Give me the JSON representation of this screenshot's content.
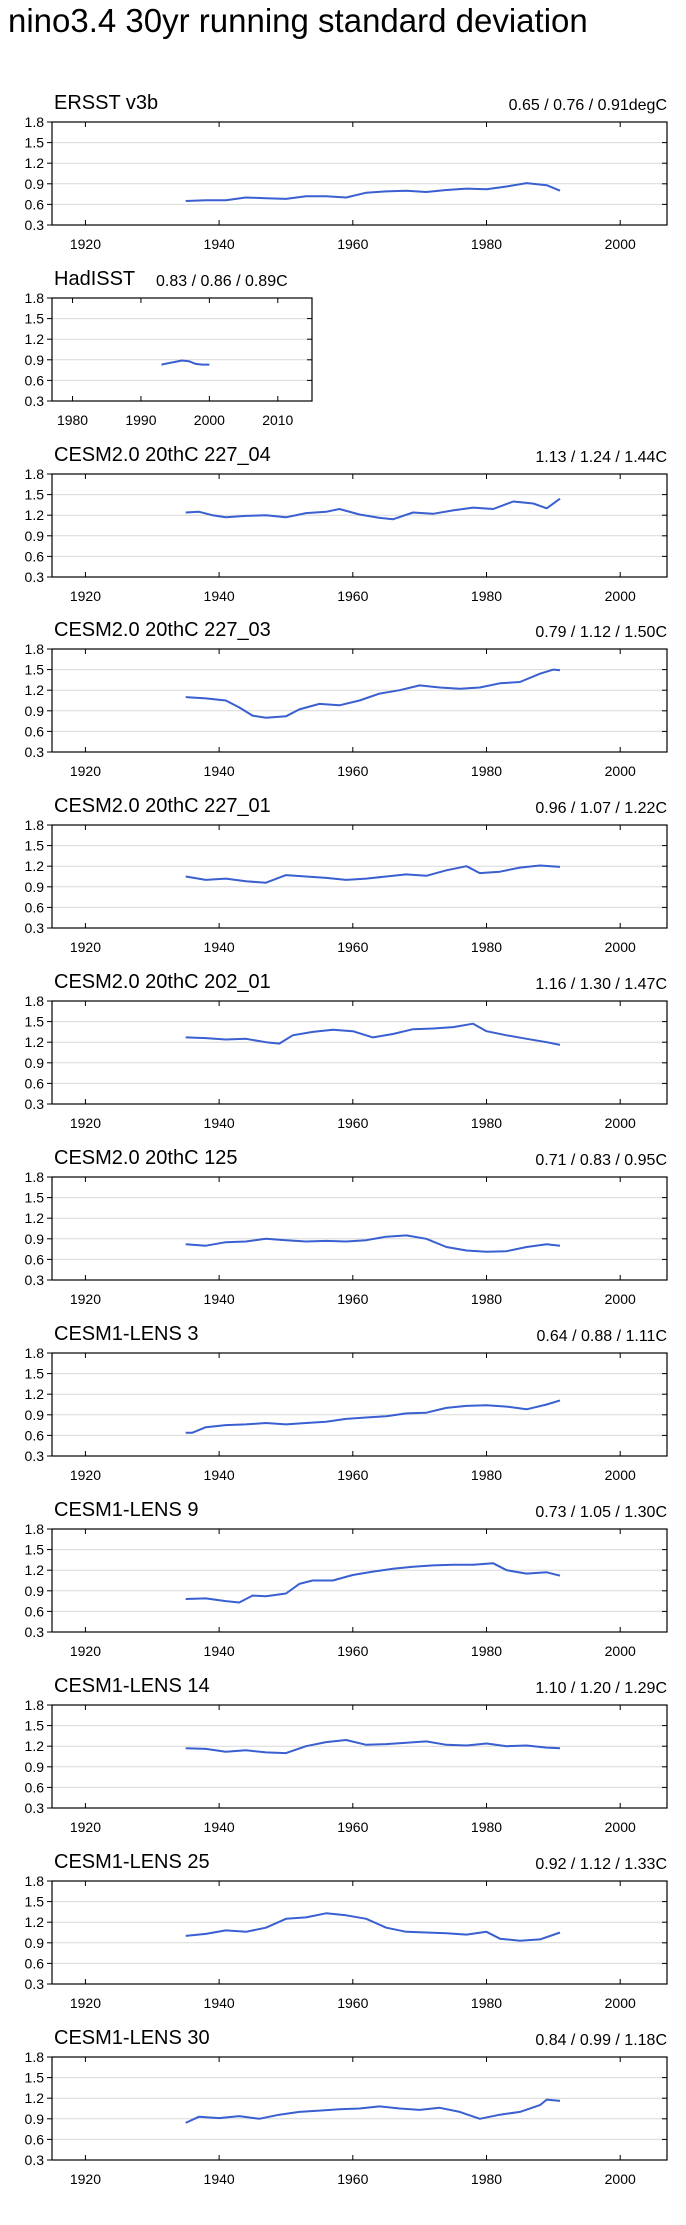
{
  "page_title": "nino3.4 30yr running standard deviation",
  "colors": {
    "line": "#3a5fd0",
    "axis": "#000000",
    "grid": "#d9d9d9"
  },
  "chart_data": [
    {
      "type": "line",
      "title": "ERSST v3b",
      "stats": "0.65 / 0.76 / 0.91degC",
      "xlim": [
        1915,
        2007
      ],
      "ylim": [
        0.3,
        1.8
      ],
      "xticks": [
        1920,
        1940,
        1960,
        1980,
        2000
      ],
      "yticks": [
        0.3,
        0.6,
        0.9,
        1.2,
        1.5,
        1.8
      ],
      "series": [
        {
          "name": "ERSST v3b",
          "x": [
            1935,
            1938,
            1941,
            1944,
            1947,
            1950,
            1953,
            1956,
            1959,
            1962,
            1965,
            1968,
            1971,
            1974,
            1977,
            1980,
            1983,
            1986,
            1989,
            1991
          ],
          "y": [
            0.65,
            0.66,
            0.66,
            0.7,
            0.69,
            0.68,
            0.72,
            0.72,
            0.7,
            0.77,
            0.79,
            0.8,
            0.78,
            0.81,
            0.83,
            0.82,
            0.86,
            0.91,
            0.88,
            0.8
          ]
        }
      ]
    },
    {
      "type": "line",
      "title": "HadISST",
      "stats": "0.83 / 0.86 / 0.89C",
      "xlim": [
        1977,
        2015
      ],
      "ylim": [
        0.3,
        1.8
      ],
      "xticks": [
        1980,
        1990,
        2000,
        2010
      ],
      "yticks": [
        0.3,
        0.6,
        0.9,
        1.2,
        1.5,
        1.8
      ],
      "series": [
        {
          "name": "HadISST",
          "x": [
            1993,
            1994,
            1995,
            1996,
            1997,
            1998,
            1999,
            2000
          ],
          "y": [
            0.83,
            0.85,
            0.87,
            0.89,
            0.88,
            0.84,
            0.83,
            0.83
          ]
        }
      ]
    },
    {
      "type": "line",
      "title": "CESM2.0 20thC 227_04",
      "stats": "1.13 / 1.24 / 1.44C",
      "xlim": [
        1915,
        2007
      ],
      "ylim": [
        0.3,
        1.8
      ],
      "xticks": [
        1920,
        1940,
        1960,
        1980,
        2000
      ],
      "yticks": [
        0.3,
        0.6,
        0.9,
        1.2,
        1.5,
        1.8
      ],
      "series": [
        {
          "name": "CESM2.0 20thC 227_04",
          "x": [
            1935,
            1937,
            1939,
            1941,
            1944,
            1947,
            1950,
            1953,
            1956,
            1958,
            1961,
            1964,
            1966,
            1969,
            1972,
            1975,
            1978,
            1981,
            1984,
            1987,
            1989,
            1991
          ],
          "y": [
            1.24,
            1.25,
            1.2,
            1.17,
            1.19,
            1.2,
            1.17,
            1.23,
            1.25,
            1.29,
            1.21,
            1.16,
            1.14,
            1.24,
            1.22,
            1.27,
            1.31,
            1.29,
            1.4,
            1.37,
            1.3,
            1.44
          ]
        }
      ]
    },
    {
      "type": "line",
      "title": "CESM2.0 20thC 227_03",
      "stats": "0.79 / 1.12 / 1.50C",
      "xlim": [
        1915,
        2007
      ],
      "ylim": [
        0.3,
        1.8
      ],
      "xticks": [
        1920,
        1940,
        1960,
        1980,
        2000
      ],
      "yticks": [
        0.3,
        0.6,
        0.9,
        1.2,
        1.5,
        1.8
      ],
      "series": [
        {
          "name": "CESM2.0 20thC 227_03",
          "x": [
            1935,
            1938,
            1941,
            1943,
            1945,
            1947,
            1950,
            1952,
            1955,
            1958,
            1961,
            1964,
            1967,
            1970,
            1973,
            1976,
            1979,
            1982,
            1985,
            1988,
            1990,
            1991
          ],
          "y": [
            1.1,
            1.08,
            1.05,
            0.95,
            0.83,
            0.8,
            0.82,
            0.92,
            1.0,
            0.98,
            1.05,
            1.15,
            1.2,
            1.27,
            1.24,
            1.22,
            1.24,
            1.3,
            1.32,
            1.44,
            1.5,
            1.49
          ]
        }
      ]
    },
    {
      "type": "line",
      "title": "CESM2.0 20thC 227_01",
      "stats": "0.96 / 1.07 / 1.22C",
      "xlim": [
        1915,
        2007
      ],
      "ylim": [
        0.3,
        1.8
      ],
      "xticks": [
        1920,
        1940,
        1960,
        1980,
        2000
      ],
      "yticks": [
        0.3,
        0.6,
        0.9,
        1.2,
        1.5,
        1.8
      ],
      "series": [
        {
          "name": "CESM2.0 20thC 227_01",
          "x": [
            1935,
            1938,
            1941,
            1944,
            1947,
            1950,
            1953,
            1956,
            1959,
            1962,
            1965,
            1968,
            1971,
            1974,
            1977,
            1979,
            1982,
            1985,
            1988,
            1991
          ],
          "y": [
            1.05,
            1.0,
            1.02,
            0.98,
            0.96,
            1.07,
            1.05,
            1.03,
            1.0,
            1.02,
            1.05,
            1.08,
            1.06,
            1.14,
            1.2,
            1.1,
            1.12,
            1.18,
            1.21,
            1.19
          ]
        }
      ]
    },
    {
      "type": "line",
      "title": "CESM2.0 20thC 202_01",
      "stats": "1.16 / 1.30 / 1.47C",
      "xlim": [
        1915,
        2007
      ],
      "ylim": [
        0.3,
        1.8
      ],
      "xticks": [
        1920,
        1940,
        1960,
        1980,
        2000
      ],
      "yticks": [
        0.3,
        0.6,
        0.9,
        1.2,
        1.5,
        1.8
      ],
      "series": [
        {
          "name": "CESM2.0 20thC 202_01",
          "x": [
            1935,
            1938,
            1941,
            1944,
            1947,
            1949,
            1951,
            1954,
            1957,
            1960,
            1963,
            1966,
            1969,
            1972,
            1975,
            1978,
            1980,
            1983,
            1986,
            1989,
            1991
          ],
          "y": [
            1.27,
            1.26,
            1.24,
            1.25,
            1.2,
            1.18,
            1.3,
            1.35,
            1.38,
            1.36,
            1.27,
            1.32,
            1.39,
            1.4,
            1.42,
            1.47,
            1.36,
            1.3,
            1.25,
            1.2,
            1.16
          ]
        }
      ]
    },
    {
      "type": "line",
      "title": "CESM2.0 20thC 125",
      "stats": "0.71 / 0.83 / 0.95C",
      "xlim": [
        1915,
        2007
      ],
      "ylim": [
        0.3,
        1.8
      ],
      "xticks": [
        1920,
        1940,
        1960,
        1980,
        2000
      ],
      "yticks": [
        0.3,
        0.6,
        0.9,
        1.2,
        1.5,
        1.8
      ],
      "series": [
        {
          "name": "CESM2.0 20thC 125",
          "x": [
            1935,
            1938,
            1941,
            1944,
            1947,
            1950,
            1953,
            1956,
            1959,
            1962,
            1965,
            1968,
            1971,
            1974,
            1977,
            1980,
            1983,
            1986,
            1989,
            1991
          ],
          "y": [
            0.82,
            0.8,
            0.85,
            0.86,
            0.9,
            0.88,
            0.86,
            0.87,
            0.86,
            0.88,
            0.93,
            0.95,
            0.9,
            0.78,
            0.73,
            0.71,
            0.72,
            0.78,
            0.82,
            0.8
          ]
        }
      ]
    },
    {
      "type": "line",
      "title": "CESM1-LENS 3",
      "stats": "0.64 / 0.88 / 1.11C",
      "xlim": [
        1915,
        2007
      ],
      "ylim": [
        0.3,
        1.8
      ],
      "xticks": [
        1920,
        1940,
        1960,
        1980,
        2000
      ],
      "yticks": [
        0.3,
        0.6,
        0.9,
        1.2,
        1.5,
        1.8
      ],
      "series": [
        {
          "name": "CESM1-LENS 3",
          "x": [
            1935,
            1936,
            1938,
            1941,
            1944,
            1947,
            1950,
            1953,
            1956,
            1959,
            1962,
            1965,
            1968,
            1971,
            1974,
            1977,
            1980,
            1983,
            1986,
            1989,
            1991
          ],
          "y": [
            0.64,
            0.64,
            0.72,
            0.75,
            0.76,
            0.78,
            0.76,
            0.78,
            0.8,
            0.84,
            0.86,
            0.88,
            0.92,
            0.93,
            1.0,
            1.03,
            1.04,
            1.02,
            0.98,
            1.05,
            1.11
          ]
        }
      ]
    },
    {
      "type": "line",
      "title": "CESM1-LENS 9",
      "stats": "0.73 / 1.05 / 1.30C",
      "xlim": [
        1915,
        2007
      ],
      "ylim": [
        0.3,
        1.8
      ],
      "xticks": [
        1920,
        1940,
        1960,
        1980,
        2000
      ],
      "yticks": [
        0.3,
        0.6,
        0.9,
        1.2,
        1.5,
        1.8
      ],
      "series": [
        {
          "name": "CESM1-LENS 9",
          "x": [
            1935,
            1938,
            1941,
            1943,
            1945,
            1947,
            1950,
            1952,
            1954,
            1957,
            1960,
            1963,
            1966,
            1969,
            1972,
            1975,
            1978,
            1981,
            1983,
            1986,
            1989,
            1991
          ],
          "y": [
            0.78,
            0.79,
            0.75,
            0.73,
            0.83,
            0.82,
            0.86,
            1.0,
            1.05,
            1.05,
            1.13,
            1.18,
            1.22,
            1.25,
            1.27,
            1.28,
            1.28,
            1.3,
            1.2,
            1.15,
            1.17,
            1.12
          ]
        }
      ]
    },
    {
      "type": "line",
      "title": "CESM1-LENS 14",
      "stats": "1.10 / 1.20 / 1.29C",
      "xlim": [
        1915,
        2007
      ],
      "ylim": [
        0.3,
        1.8
      ],
      "xticks": [
        1920,
        1940,
        1960,
        1980,
        2000
      ],
      "yticks": [
        0.3,
        0.6,
        0.9,
        1.2,
        1.5,
        1.8
      ],
      "series": [
        {
          "name": "CESM1-LENS 14",
          "x": [
            1935,
            1938,
            1941,
            1944,
            1947,
            1950,
            1953,
            1956,
            1959,
            1962,
            1965,
            1968,
            1971,
            1974,
            1977,
            1980,
            1983,
            1986,
            1989,
            1991
          ],
          "y": [
            1.17,
            1.16,
            1.12,
            1.14,
            1.11,
            1.1,
            1.2,
            1.26,
            1.29,
            1.22,
            1.23,
            1.25,
            1.27,
            1.22,
            1.21,
            1.24,
            1.2,
            1.21,
            1.18,
            1.17
          ]
        }
      ]
    },
    {
      "type": "line",
      "title": "CESM1-LENS 25",
      "stats": "0.92 / 1.12 / 1.33C",
      "xlim": [
        1915,
        2007
      ],
      "ylim": [
        0.3,
        1.8
      ],
      "xticks": [
        1920,
        1940,
        1960,
        1980,
        2000
      ],
      "yticks": [
        0.3,
        0.6,
        0.9,
        1.2,
        1.5,
        1.8
      ],
      "series": [
        {
          "name": "CESM1-LENS 25",
          "x": [
            1935,
            1938,
            1941,
            1944,
            1947,
            1950,
            1953,
            1956,
            1959,
            1962,
            1965,
            1968,
            1971,
            1974,
            1977,
            1980,
            1982,
            1985,
            1988,
            1991
          ],
          "y": [
            1.0,
            1.03,
            1.08,
            1.06,
            1.12,
            1.25,
            1.27,
            1.33,
            1.3,
            1.25,
            1.12,
            1.06,
            1.05,
            1.04,
            1.02,
            1.06,
            0.96,
            0.93,
            0.95,
            1.05
          ]
        }
      ]
    },
    {
      "type": "line",
      "title": "CESM1-LENS 30",
      "stats": "0.84 / 0.99 / 1.18C",
      "xlim": [
        1915,
        2007
      ],
      "ylim": [
        0.3,
        1.8
      ],
      "xticks": [
        1920,
        1940,
        1960,
        1980,
        2000
      ],
      "yticks": [
        0.3,
        0.6,
        0.9,
        1.2,
        1.5,
        1.8
      ],
      "series": [
        {
          "name": "CESM1-LENS 30",
          "x": [
            1935,
            1937,
            1940,
            1943,
            1946,
            1949,
            1952,
            1955,
            1958,
            1961,
            1964,
            1967,
            1970,
            1973,
            1976,
            1979,
            1982,
            1985,
            1988,
            1989,
            1991
          ],
          "y": [
            0.84,
            0.93,
            0.91,
            0.94,
            0.9,
            0.96,
            1.0,
            1.02,
            1.04,
            1.05,
            1.08,
            1.05,
            1.03,
            1.06,
            1.0,
            0.9,
            0.96,
            1.0,
            1.1,
            1.18,
            1.16
          ]
        }
      ]
    }
  ]
}
